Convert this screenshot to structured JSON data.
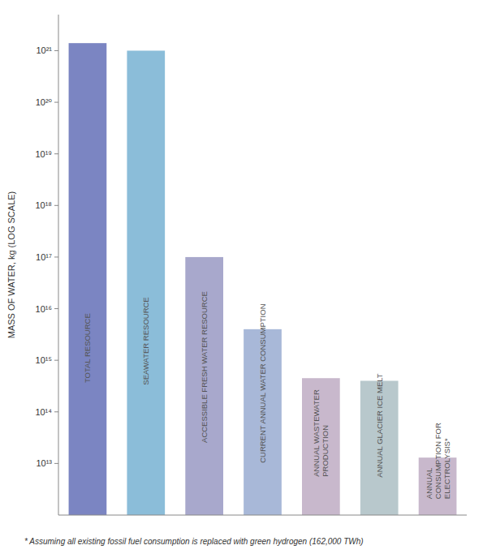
{
  "chart_data": {
    "type": "bar",
    "categories": [
      "TOTAL RESOURCE",
      "SEAWATER RESOURCE",
      "ACCESSIBLE FRESH WATER RESOURCE",
      "CURRENT ANNUAL WATER CONSUMPTION",
      "ANNUAL WASTEWATER\nPRODUCTION",
      "ANNUAL GLACIER ICE MELT",
      "ANNUAL\nCONSUMPTION FOR\nELECTROLYSIS*"
    ],
    "values": [
      1.4e+21,
      1e+21,
      1e+17,
      4000000000000000.0,
      450000000000000.0,
      400000000000000.0,
      13000000000000.0
    ],
    "colors": [
      "#7B85C2",
      "#8BBDD9",
      "#A8A8CC",
      "#A8B8D8",
      "#C8B8CC",
      "#B8C8CC",
      "#C8B8CC"
    ],
    "ylabel": "MASS OF WATER, kg (LOG SCALE)",
    "annotations": [
      "* Assuming all existing fossil fuel consumption is replaced with green hydrogen (162,000 TWh)"
    ],
    "log": "y",
    "ylim": [
      1000000000000.0,
      5e+21
    ],
    "yticks": [
      {
        "value": 10000000000000.0,
        "label": "10¹³"
      },
      {
        "value": 100000000000000.0,
        "label": "10¹⁴"
      },
      {
        "value": 1000000000000000.0,
        "label": "10¹⁵"
      },
      {
        "value": 1e+16,
        "label": "10¹⁶"
      },
      {
        "value": 1e+17,
        "label": "10¹⁷"
      },
      {
        "value": 1e+18,
        "label": "10¹⁸"
      },
      {
        "value": 1e+19,
        "label": "10¹⁹"
      },
      {
        "value": 1e+20,
        "label": "10²⁰"
      },
      {
        "value": 1e+21,
        "label": "10²¹"
      }
    ],
    "grid": false,
    "tick_labels": "y"
  }
}
